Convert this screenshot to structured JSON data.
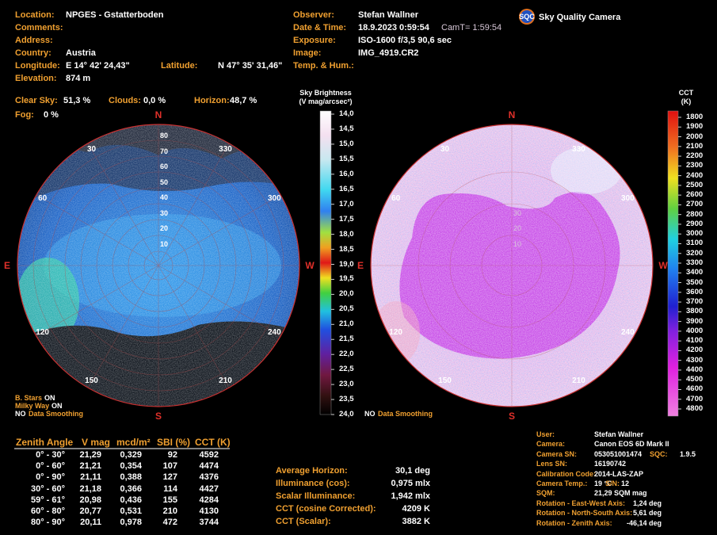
{
  "header": {
    "left": [
      {
        "label": "Location:",
        "value": "NPGES - Gstatterboden"
      },
      {
        "label": "Comments:"
      },
      {
        "label": "Address:"
      },
      {
        "label": "Country:",
        "value": "Austria"
      },
      {
        "label": "Longitude:",
        "value": "E 14° 42' 24,43\""
      },
      {
        "label": "Elevation:",
        "value": "874 m"
      }
    ],
    "latitude": {
      "label": "Latitude:",
      "value": "N 47° 35' 31,46\""
    },
    "middle": [
      {
        "label": "Observer:",
        "value": "Stefan Wallner"
      },
      {
        "label": "Date & Time:",
        "value": "18.9.2023   0:59:54",
        "extra": "CamT= 1:59:54"
      },
      {
        "label": "Exposure:",
        "value": "ISO-1600  f/3,5  90,6 sec"
      },
      {
        "label": "Image:",
        "value": "IMG_4919.CR2"
      },
      {
        "label": "Temp. & Hum.:"
      }
    ],
    "logo": {
      "badge": "SQC",
      "name": "Sky Quality Camera"
    }
  },
  "sky_stats": [
    {
      "label": "Clear Sky:",
      "value": "51,3 %"
    },
    {
      "label": "Clouds:",
      "value": "0,0 %"
    },
    {
      "label": "Horizon:",
      "value": "48,7 %"
    },
    {
      "label": "Fog:",
      "value": "0 %"
    }
  ],
  "domes": {
    "cardinals": [
      "N",
      "E",
      "W",
      "S"
    ],
    "azimuths": [
      "30",
      "60",
      "120",
      "150",
      "210",
      "240",
      "300",
      "330"
    ],
    "altitudes": [
      "80",
      "70",
      "60",
      "50",
      "40",
      "30",
      "20",
      "10"
    ],
    "left_notes": [
      [
        "B. Stars",
        "ON"
      ],
      [
        "Milky Way",
        "ON"
      ],
      [
        "NO",
        "Data Smoothing"
      ]
    ],
    "right_note": [
      "NO",
      "Data Smoothing"
    ]
  },
  "colorbars": [
    {
      "title": [
        "Sky Brightness",
        "(V mag/arcsec²)"
      ],
      "ticks": [
        "14,0",
        "14,5",
        "15,0",
        "15,5",
        "16,0",
        "16,5",
        "17,0",
        "17,5",
        "18,0",
        "18,5",
        "19,0",
        "19,5",
        "20,0",
        "20,5",
        "21,0",
        "21,5",
        "22,0",
        "22,5",
        "23,0",
        "23,5",
        "24,0"
      ]
    },
    {
      "title": [
        "CCT",
        "(K)"
      ],
      "ticks": [
        "1800",
        "1900",
        "2000",
        "2100",
        "2200",
        "2300",
        "2400",
        "2500",
        "2600",
        "2700",
        "2800",
        "2900",
        "3000",
        "3100",
        "3200",
        "3300",
        "3400",
        "3500",
        "3600",
        "3700",
        "3800",
        "3900",
        "4000",
        "4100",
        "4200",
        "4300",
        "4400",
        "4500",
        "4600",
        "4700",
        "4800"
      ]
    }
  ],
  "zenith_table": {
    "columns": [
      "Zenith Angle",
      "V mag",
      "mcd/m²",
      "SBI (%)",
      "CCT (K)"
    ],
    "rows": [
      [
        "0° - 30°",
        "21,29",
        "0,329",
        "92",
        "4592"
      ],
      [
        "0° - 60°",
        "21,21",
        "0,354",
        "107",
        "4474"
      ],
      [
        "0° - 90°",
        "21,11",
        "0,388",
        "127",
        "4376"
      ],
      [
        "30° - 60°",
        "21,18",
        "0,366",
        "114",
        "4427"
      ],
      [
        "59° - 61°",
        "20,98",
        "0,436",
        "155",
        "4284"
      ],
      [
        "60° - 80°",
        "20,77",
        "0,531",
        "210",
        "4130"
      ],
      [
        "80° - 90°",
        "20,11",
        "0,978",
        "472",
        "3744"
      ]
    ]
  },
  "summary": [
    {
      "label": "Average Horizon:",
      "value": "30,1 deg"
    },
    {
      "label": "Illuminance (cos):",
      "value": "0,975 mlx"
    },
    {
      "label": "Scalar Illuminance:",
      "value": "1,942 mlx"
    },
    {
      "label": "CCT (cosine Corrected):",
      "value": "4209 K"
    },
    {
      "label": "CCT (Scalar):",
      "value": "3882 K"
    }
  ],
  "camera_info": [
    {
      "label": "User:",
      "value": "Stefan Wallner"
    },
    {
      "label": "Camera:",
      "value": "Canon EOS 6D Mark II"
    },
    {
      "label": "Camera SN:",
      "value": "053051001474",
      "extra": {
        "label": "SQC:",
        "value": "1.9.5"
      }
    },
    {
      "label": "Lens SN:",
      "value": "16190742"
    },
    {
      "label": "Calibration Code:",
      "value": "2014-LAS-ZAP"
    },
    {
      "label": "Camera Temp.:",
      "value": "19 °C",
      "extra": {
        "label": "S/N:",
        "value": "12"
      }
    },
    {
      "label": "SQM:",
      "value": "21,29 SQM mag"
    },
    {
      "label": "Rotation - East-West Axis:",
      "value": "1,24 deg"
    },
    {
      "label": "Rotation - North-South Axis:",
      "value": "5,61 deg"
    },
    {
      "label": "Rotation - Zenith Axis:",
      "value": "-46,14 deg"
    }
  ]
}
